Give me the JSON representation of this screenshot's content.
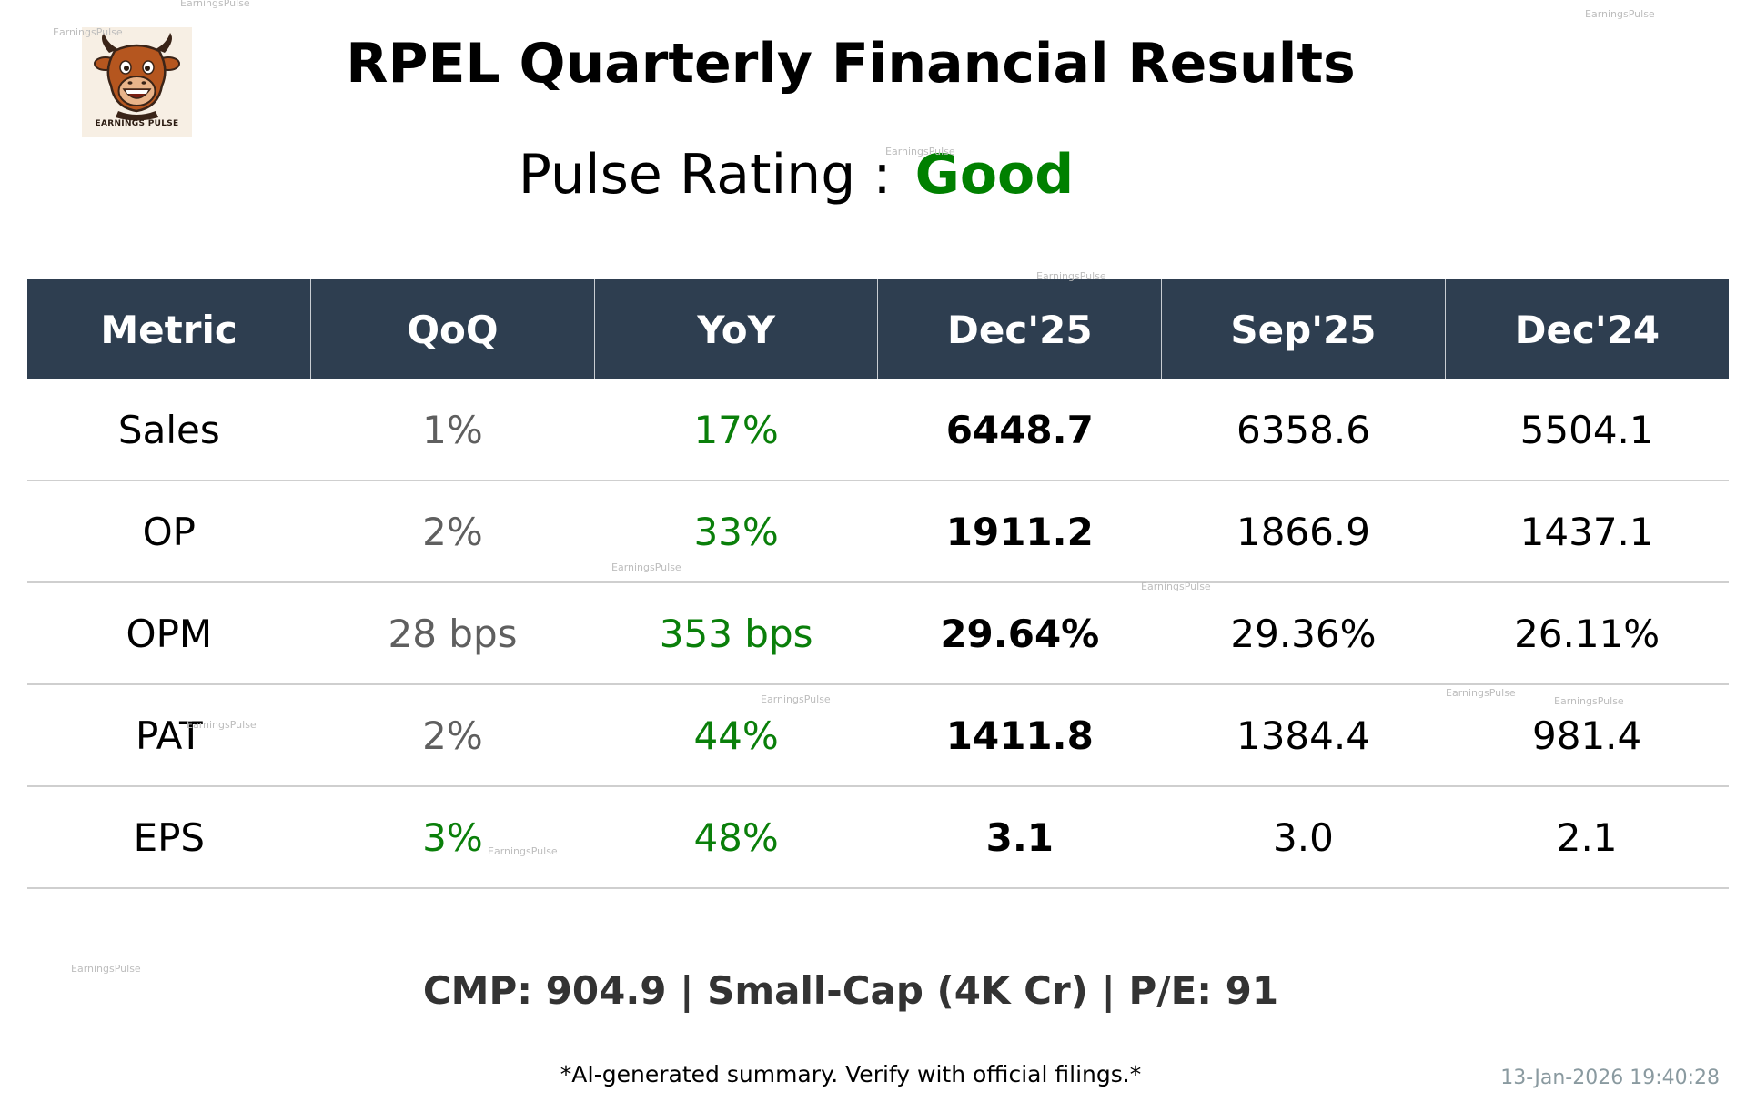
{
  "logo": {
    "icon": "bull-mascot-icon",
    "text": "EARNINGS PULSE"
  },
  "title": "RPEL Quarterly Financial Results",
  "rating": {
    "label": "Pulse Rating :",
    "value": "Good",
    "value_color": "#008000"
  },
  "table": {
    "header_bg": "#2e3e50",
    "columns": [
      "Metric",
      "QoQ",
      "YoY",
      "Dec'25",
      "Sep'25",
      "Dec'24"
    ],
    "rows": [
      {
        "metric": "Sales",
        "qoq": "1%",
        "qoq_status": "neutral",
        "yoy": "17%",
        "yoy_status": "positive",
        "dec25": "6448.7",
        "sep25": "6358.6",
        "dec24": "5504.1"
      },
      {
        "metric": "OP",
        "qoq": "2%",
        "qoq_status": "neutral",
        "yoy": "33%",
        "yoy_status": "positive",
        "dec25": "1911.2",
        "sep25": "1866.9",
        "dec24": "1437.1"
      },
      {
        "metric": "OPM",
        "qoq": "28 bps",
        "qoq_status": "neutral",
        "yoy": "353 bps",
        "yoy_status": "positive",
        "dec25": "29.64%",
        "sep25": "29.36%",
        "dec24": "26.11%"
      },
      {
        "metric": "PAT",
        "qoq": "2%",
        "qoq_status": "neutral",
        "yoy": "44%",
        "yoy_status": "positive",
        "dec25": "1411.8",
        "sep25": "1384.4",
        "dec24": "981.4"
      },
      {
        "metric": "EPS",
        "qoq": "3%",
        "qoq_status": "positive",
        "yoy": "48%",
        "yoy_status": "positive",
        "dec25": "3.1",
        "sep25": "3.0",
        "dec24": "2.1"
      }
    ]
  },
  "footer": {
    "stats": "CMP: 904.9 | Small-Cap (4K Cr) | P/E: 91",
    "disclaimer": "*AI-generated summary. Verify with official filings.*",
    "timestamp": "13-Jan-2026 19:40:28"
  },
  "watermark": "EarningsPulse",
  "colors": {
    "positive": "#0a7f0a",
    "neutral": "#5f5f5f"
  }
}
